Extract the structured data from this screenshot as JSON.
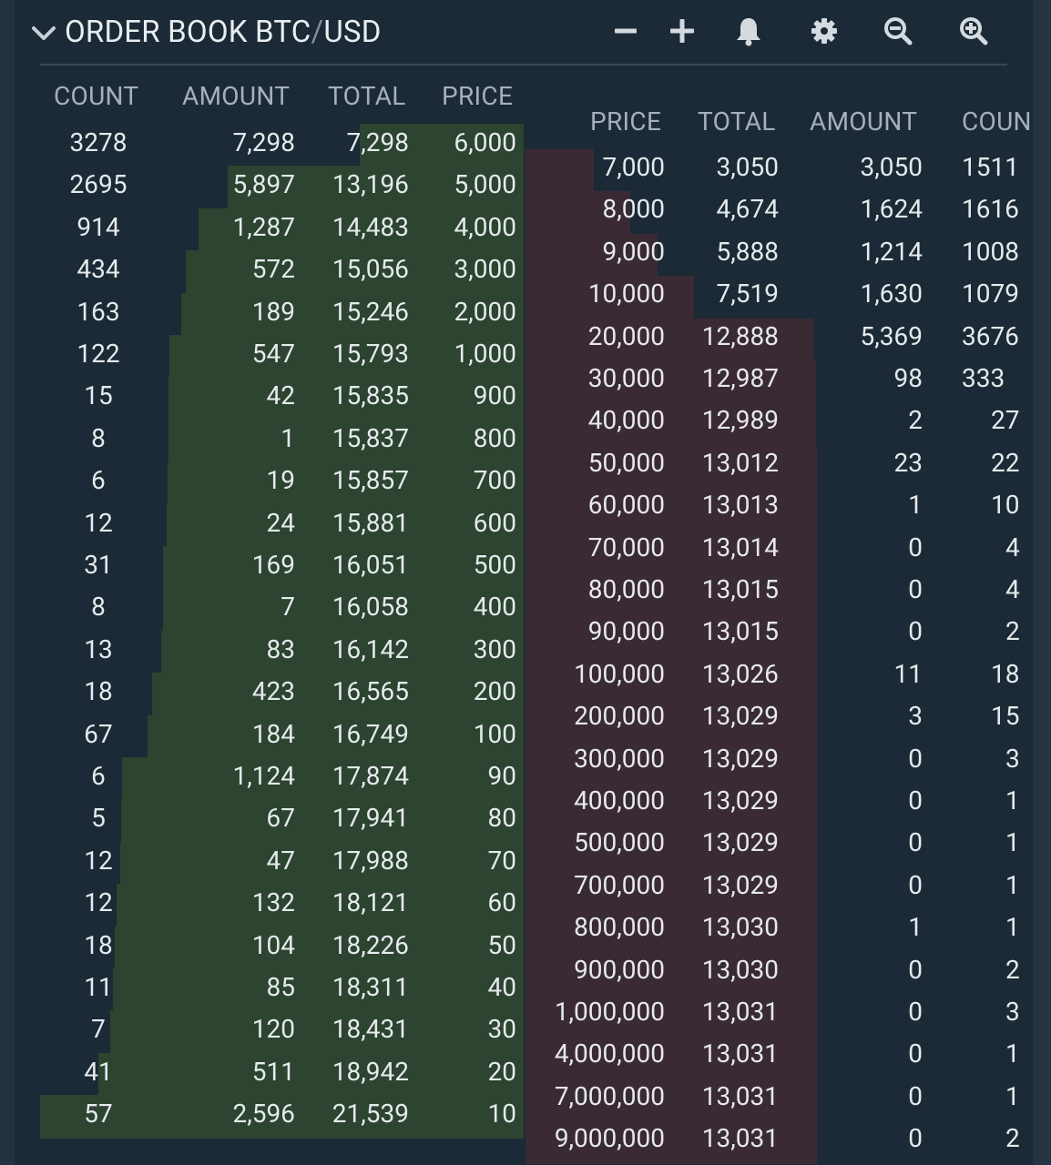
{
  "header": {
    "title_prefix": "ORDER BOOK ",
    "pair_base": "BTC",
    "pair_sep": "/",
    "pair_quote": "USD",
    "icons": [
      "minus-icon",
      "plus-icon",
      "bell-icon",
      "gear-icon",
      "zoom-out-icon",
      "zoom-in-icon"
    ]
  },
  "colors": {
    "background": "#1b2a36",
    "bid_depth": "#2c4430",
    "ask_depth": "#3a2a34",
    "header_text": "#a4b0ba",
    "value_text": "#e6eaed"
  },
  "bids": {
    "columns": [
      "COUNT",
      "AMOUNT",
      "TOTAL",
      "PRICE"
    ],
    "max_total": 21539,
    "rows": [
      {
        "count": "3278",
        "amount": "7,298",
        "total": "7,298",
        "price": "6,000",
        "total_num": 7298
      },
      {
        "count": "2695",
        "amount": "5,897",
        "total": "13,196",
        "price": "5,000",
        "total_num": 13196
      },
      {
        "count": "914",
        "amount": "1,287",
        "total": "14,483",
        "price": "4,000",
        "total_num": 14483
      },
      {
        "count": "434",
        "amount": "572",
        "total": "15,056",
        "price": "3,000",
        "total_num": 15056
      },
      {
        "count": "163",
        "amount": "189",
        "total": "15,246",
        "price": "2,000",
        "total_num": 15246
      },
      {
        "count": "122",
        "amount": "547",
        "total": "15,793",
        "price": "1,000",
        "total_num": 15793
      },
      {
        "count": "15",
        "amount": "42",
        "total": "15,835",
        "price": "900",
        "total_num": 15835
      },
      {
        "count": "8",
        "amount": "1",
        "total": "15,837",
        "price": "800",
        "total_num": 15837
      },
      {
        "count": "6",
        "amount": "19",
        "total": "15,857",
        "price": "700",
        "total_num": 15857
      },
      {
        "count": "12",
        "amount": "24",
        "total": "15,881",
        "price": "600",
        "total_num": 15881
      },
      {
        "count": "31",
        "amount": "169",
        "total": "16,051",
        "price": "500",
        "total_num": 16051
      },
      {
        "count": "8",
        "amount": "7",
        "total": "16,058",
        "price": "400",
        "total_num": 16058
      },
      {
        "count": "13",
        "amount": "83",
        "total": "16,142",
        "price": "300",
        "total_num": 16142
      },
      {
        "count": "18",
        "amount": "423",
        "total": "16,565",
        "price": "200",
        "total_num": 16565
      },
      {
        "count": "67",
        "amount": "184",
        "total": "16,749",
        "price": "100",
        "total_num": 16749
      },
      {
        "count": "6",
        "amount": "1,124",
        "total": "17,874",
        "price": "90",
        "total_num": 17874
      },
      {
        "count": "5",
        "amount": "67",
        "total": "17,941",
        "price": "80",
        "total_num": 17941
      },
      {
        "count": "12",
        "amount": "47",
        "total": "17,988",
        "price": "70",
        "total_num": 17988
      },
      {
        "count": "12",
        "amount": "132",
        "total": "18,121",
        "price": "60",
        "total_num": 18121
      },
      {
        "count": "18",
        "amount": "104",
        "total": "18,226",
        "price": "50",
        "total_num": 18226
      },
      {
        "count": "11",
        "amount": "85",
        "total": "18,311",
        "price": "40",
        "total_num": 18311
      },
      {
        "count": "7",
        "amount": "120",
        "total": "18,431",
        "price": "30",
        "total_num": 18431
      },
      {
        "count": "41",
        "amount": "511",
        "total": "18,942",
        "price": "20",
        "total_num": 18942
      },
      {
        "count": "57",
        "amount": "2,596",
        "total": "21,539",
        "price": "10",
        "total_num": 21539
      }
    ]
  },
  "asks": {
    "columns": [
      "PRICE",
      "TOTAL",
      "AMOUNT",
      "COUN"
    ],
    "max_total": 13031,
    "rows": [
      {
        "price": "7,000",
        "total": "3,050",
        "amount": "3,050",
        "count": "1511",
        "total_num": 3050
      },
      {
        "price": "8,000",
        "total": "4,674",
        "amount": "1,624",
        "count": "1616",
        "total_num": 4674
      },
      {
        "price": "9,000",
        "total": "5,888",
        "amount": "1,214",
        "count": "1008",
        "total_num": 5888
      },
      {
        "price": "10,000",
        "total": "7,519",
        "amount": "1,630",
        "count": "1079",
        "total_num": 7519
      },
      {
        "price": "20,000",
        "total": "12,888",
        "amount": "5,369",
        "count": "3676",
        "total_num": 12888
      },
      {
        "price": "30,000",
        "total": "12,987",
        "amount": "98",
        "count": "333",
        "total_num": 12987
      },
      {
        "price": "40,000",
        "total": "12,989",
        "amount": "2",
        "count": "27",
        "total_num": 12989
      },
      {
        "price": "50,000",
        "total": "13,012",
        "amount": "23",
        "count": "22",
        "total_num": 13012
      },
      {
        "price": "60,000",
        "total": "13,013",
        "amount": "1",
        "count": "10",
        "total_num": 13013
      },
      {
        "price": "70,000",
        "total": "13,014",
        "amount": "0",
        "count": "4",
        "total_num": 13014
      },
      {
        "price": "80,000",
        "total": "13,015",
        "amount": "0",
        "count": "4",
        "total_num": 13015
      },
      {
        "price": "90,000",
        "total": "13,015",
        "amount": "0",
        "count": "2",
        "total_num": 13015
      },
      {
        "price": "100,000",
        "total": "13,026",
        "amount": "11",
        "count": "18",
        "total_num": 13026
      },
      {
        "price": "200,000",
        "total": "13,029",
        "amount": "3",
        "count": "15",
        "total_num": 13029
      },
      {
        "price": "300,000",
        "total": "13,029",
        "amount": "0",
        "count": "3",
        "total_num": 13029
      },
      {
        "price": "400,000",
        "total": "13,029",
        "amount": "0",
        "count": "1",
        "total_num": 13029
      },
      {
        "price": "500,000",
        "total": "13,029",
        "amount": "0",
        "count": "1",
        "total_num": 13029
      },
      {
        "price": "700,000",
        "total": "13,029",
        "amount": "0",
        "count": "1",
        "total_num": 13029
      },
      {
        "price": "800,000",
        "total": "13,030",
        "amount": "1",
        "count": "1",
        "total_num": 13030
      },
      {
        "price": "900,000",
        "total": "13,030",
        "amount": "0",
        "count": "2",
        "total_num": 13030
      },
      {
        "price": "1,000,000",
        "total": "13,031",
        "amount": "0",
        "count": "3",
        "total_num": 13031
      },
      {
        "price": "4,000,000",
        "total": "13,031",
        "amount": "0",
        "count": "1",
        "total_num": 13031
      },
      {
        "price": "7,000,000",
        "total": "13,031",
        "amount": "0",
        "count": "1",
        "total_num": 13031
      },
      {
        "price": "9,000,000",
        "total": "13,031",
        "amount": "0",
        "count": "2",
        "total_num": 13031
      }
    ]
  }
}
